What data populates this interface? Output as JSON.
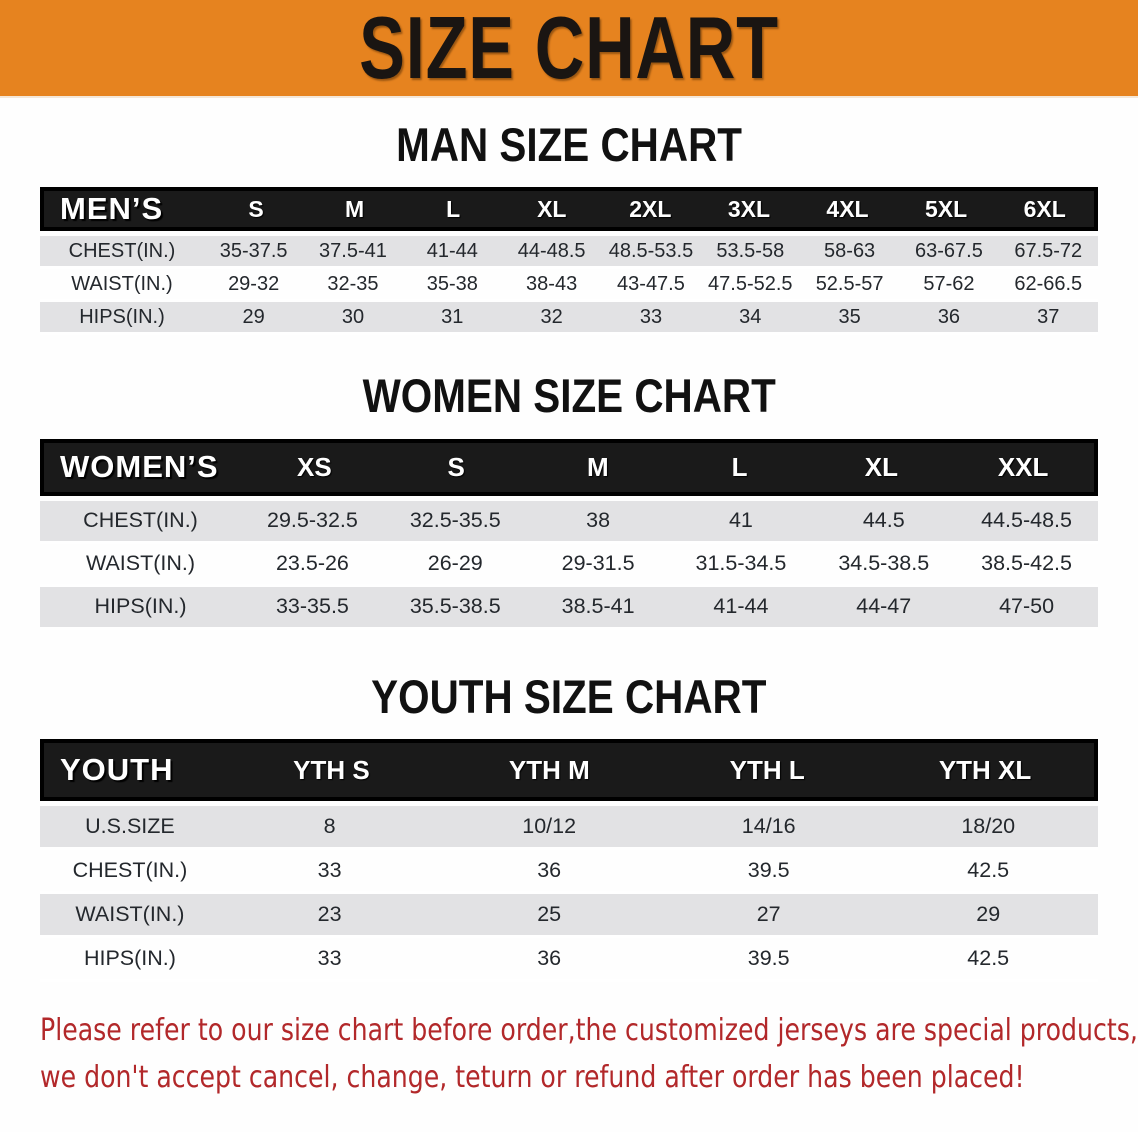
{
  "colors": {
    "banner-bg": "#E6831F",
    "banner-text": "#1A1512",
    "header-bar-bg": "#1A1A1A",
    "header-bar-border": "#000000",
    "header-bar-text": "#FFFFFF",
    "shade-row-bg": "#E2E2E4",
    "table-text": "#24282D",
    "heading-text": "#111111",
    "disclaimer-text": "#B2282A",
    "page-bg": "#FEFEFE"
  },
  "banner": {
    "title": "SIZE CHART"
  },
  "sections": [
    {
      "id": "men",
      "heading": "MAN SIZE CHART",
      "table": {
        "header_label": "MEN’S",
        "columns": [
          "S",
          "M",
          "L",
          "XL",
          "2XL",
          "3XL",
          "4XL",
          "5XL",
          "6XL"
        ],
        "rows": [
          {
            "label": "CHEST(IN.)",
            "values": [
              "35-37.5",
              "37.5-41",
              "41-44",
              "44-48.5",
              "48.5-53.5",
              "53.5-58",
              "58-63",
              "63-67.5",
              "67.5-72"
            ]
          },
          {
            "label": "WAIST(IN.)",
            "values": [
              "29-32",
              "32-35",
              "35-38",
              "38-43",
              "43-47.5",
              "47.5-52.5",
              "52.5-57",
              "57-62",
              "62-66.5"
            ]
          },
          {
            "label": "HIPS(IN.)",
            "values": [
              "29",
              "30",
              "31",
              "32",
              "33",
              "34",
              "35",
              "36",
              "37"
            ]
          }
        ]
      }
    },
    {
      "id": "women",
      "heading": "WOMEN SIZE CHART",
      "table": {
        "header_label": "WOMEN’S",
        "columns": [
          "XS",
          "S",
          "M",
          "L",
          "XL",
          "XXL"
        ],
        "rows": [
          {
            "label": "CHEST(IN.)",
            "values": [
              "29.5-32.5",
              "32.5-35.5",
              "38",
              "41",
              "44.5",
              "44.5-48.5"
            ]
          },
          {
            "label": "WAIST(IN.)",
            "values": [
              "23.5-26",
              "26-29",
              "29-31.5",
              "31.5-34.5",
              "34.5-38.5",
              "38.5-42.5"
            ]
          },
          {
            "label": "HIPS(IN.)",
            "values": [
              "33-35.5",
              "35.5-38.5",
              "38.5-41",
              "41-44",
              "44-47",
              "47-50"
            ]
          }
        ]
      }
    },
    {
      "id": "youth",
      "heading": "YOUTH SIZE CHART",
      "table": {
        "header_label": "YOUTH",
        "columns": [
          "YTH S",
          "YTH M",
          "YTH L",
          "YTH XL"
        ],
        "rows": [
          {
            "label": "U.S.SIZE",
            "values": [
              "8",
              "10/12",
              "14/16",
              "18/20"
            ]
          },
          {
            "label": "CHEST(IN.)",
            "values": [
              "33",
              "36",
              "39.5",
              "42.5"
            ]
          },
          {
            "label": "WAIST(IN.)",
            "values": [
              "23",
              "25",
              "27",
              "29"
            ]
          },
          {
            "label": "HIPS(IN.)",
            "values": [
              "33",
              "36",
              "39.5",
              "42.5"
            ]
          }
        ]
      }
    }
  ],
  "disclaimer": {
    "line1": "Please refer to our size chart before order,the customized jerseys are special products,",
    "line2": "we don't accept cancel, change, teturn or refund after order has been placed!"
  }
}
